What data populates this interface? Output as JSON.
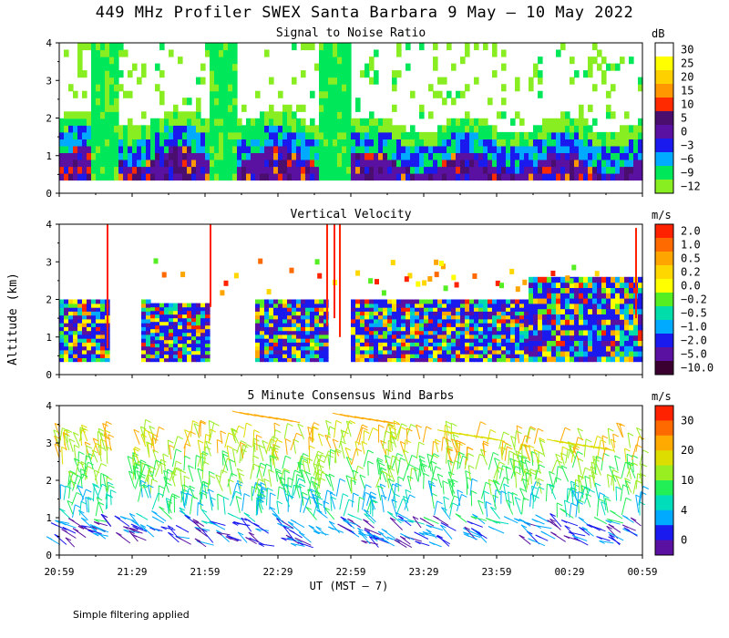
{
  "header": {
    "title": "449 MHz Profiler SWEX Santa Barbara  9 May – 10 May 2022"
  },
  "footnote": "Simple filtering applied",
  "x_axis": {
    "label": "UT  (MST – 7)",
    "ticks": [
      "20:59",
      "21:29",
      "21:59",
      "22:29",
      "22:59",
      "23:29",
      "23:59",
      "00:29",
      "00:59"
    ]
  },
  "y_axis": {
    "label": "Altitude (km)",
    "ticks": [
      "0",
      "1",
      "2",
      "3",
      "4"
    ]
  },
  "chart_data": [
    {
      "type": "heatmap",
      "title": "Signal to Noise Ratio",
      "colorbar_unit": "dB",
      "colorbar_labels": [
        "30",
        "25",
        "20",
        "15",
        "10",
        "5",
        "0",
        "−3",
        "−6",
        "−9",
        "−12"
      ],
      "colors": [
        "#ffffff",
        "#ffff00",
        "#ffd000",
        "#ff9800",
        "#ff2a00",
        "#4a0f6e",
        "#5a10a0",
        "#1a1aee",
        "#00aaff",
        "#00e85a",
        "#88ee22"
      ],
      "ylim": [
        0,
        4
      ],
      "xlim": [
        "20:59",
        "00:59"
      ]
    },
    {
      "type": "heatmap",
      "title": "Vertical Velocity",
      "colorbar_unit": "m/s",
      "colorbar_labels": [
        "2.0",
        "1.0",
        "0.5",
        "0.2",
        "0.0",
        "−0.2",
        "−0.5",
        "−1.0",
        "−2.0",
        "−5.0",
        "−10.0"
      ],
      "colors": [
        "#ff2200",
        "#ff6a00",
        "#ffa500",
        "#ffd700",
        "#ffff00",
        "#55ee22",
        "#00ddaa",
        "#00aaff",
        "#1a1aee",
        "#5a10a0",
        "#3a0030"
      ],
      "ylim": [
        0,
        4
      ],
      "xlim": [
        "20:59",
        "00:59"
      ]
    },
    {
      "type": "scatter",
      "title": "5 Minute Consensus Wind Barbs",
      "colorbar_unit": "m/s",
      "colorbar_labels": [
        "30",
        "20",
        "10",
        "4",
        "0"
      ],
      "colors": [
        "#ff2200",
        "#ff6a00",
        "#ffaa00",
        "#dddd00",
        "#99ee22",
        "#22ee55",
        "#00ddbb",
        "#00aaff",
        "#1a1aee",
        "#5a10a0"
      ],
      "ylim": [
        0,
        4
      ],
      "xlim": [
        "20:59",
        "00:59"
      ]
    }
  ]
}
